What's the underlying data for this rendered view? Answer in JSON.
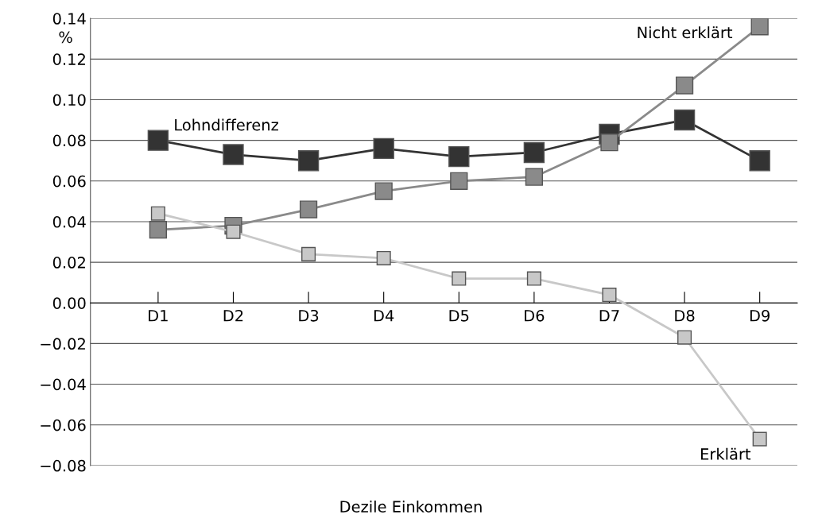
{
  "chart_data": {
    "type": "line",
    "xlabel": "Dezile Einkommen",
    "ylabel": "%",
    "categories": [
      "D1",
      "D2",
      "D3",
      "D4",
      "D5",
      "D6",
      "D7",
      "D8",
      "D9"
    ],
    "series": [
      {
        "name": "Lohndifferenz",
        "color": "#333333",
        "values": [
          0.08,
          0.073,
          0.07,
          0.076,
          0.072,
          0.074,
          0.083,
          0.09,
          0.07
        ]
      },
      {
        "name": "Nicht erklärt",
        "color": "#8a8a8a",
        "values": [
          0.036,
          0.038,
          0.046,
          0.055,
          0.06,
          0.062,
          0.079,
          0.107,
          0.136
        ]
      },
      {
        "name": "Erklärt",
        "color": "#c8c8c8",
        "values": [
          0.044,
          0.035,
          0.024,
          0.022,
          0.012,
          0.012,
          0.004,
          -0.017,
          -0.067
        ]
      }
    ],
    "ylim": [
      -0.08,
      0.14
    ],
    "yticks": [
      {
        "value": -0.08,
        "label": "−0.08"
      },
      {
        "value": -0.06,
        "label": "−0.06"
      },
      {
        "value": -0.04,
        "label": "−0.04"
      },
      {
        "value": -0.02,
        "label": "−0.02"
      },
      {
        "value": 0,
        "label": "0.00"
      },
      {
        "value": 0.02,
        "label": "0.02"
      },
      {
        "value": 0.04,
        "label": "0.04"
      },
      {
        "value": 0.06,
        "label": "0.06"
      },
      {
        "value": 0.08,
        "label": "0.08"
      },
      {
        "value": 0.1,
        "label": "0.10"
      },
      {
        "value": 0.12,
        "label": "0.12"
      },
      {
        "value": 0.14,
        "label": "0.14"
      }
    ],
    "grid": "y",
    "legend": false,
    "marker": "square",
    "line_style": "solid"
  }
}
